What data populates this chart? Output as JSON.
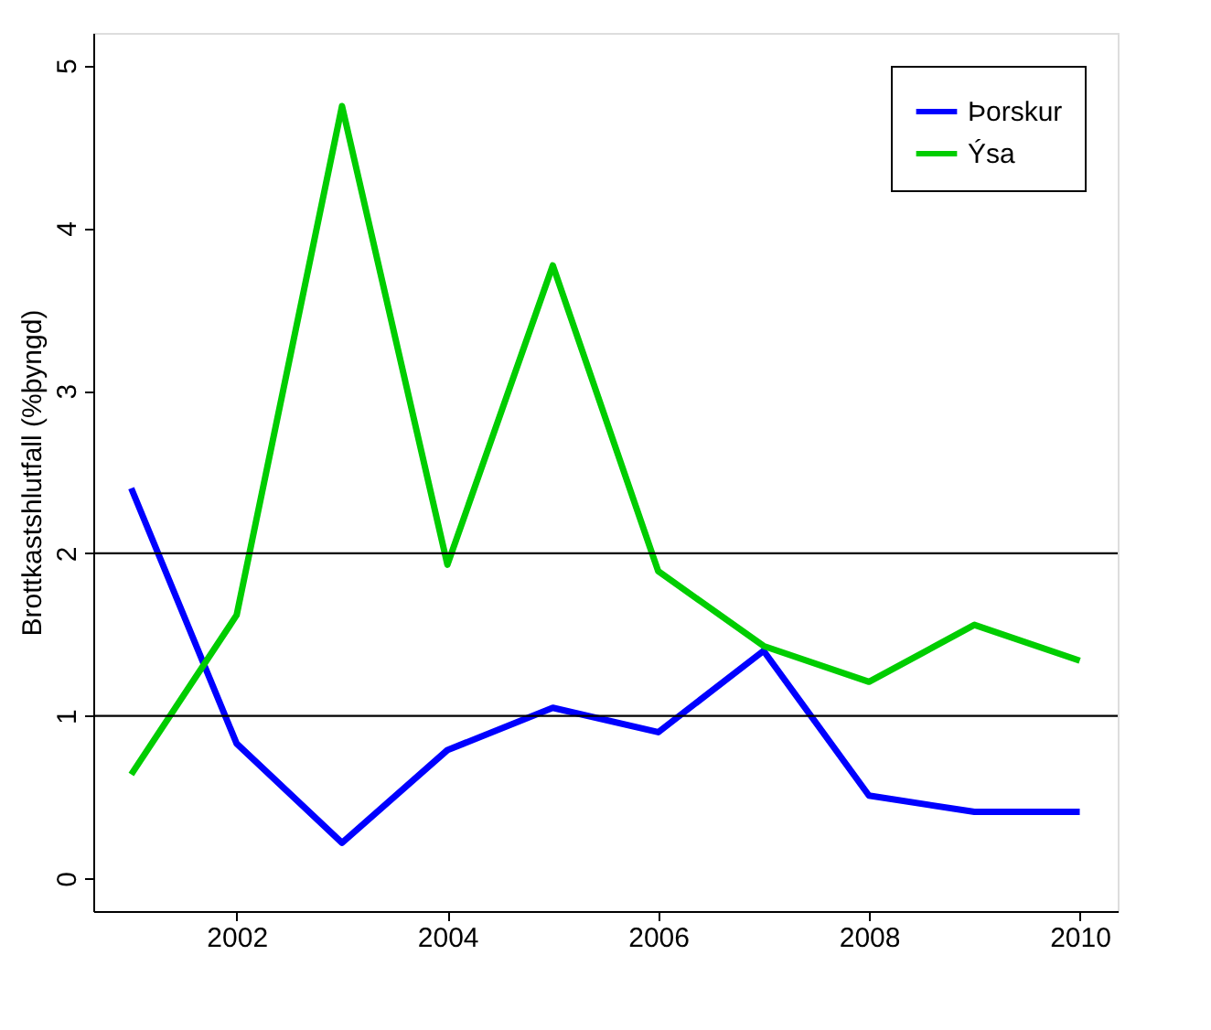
{
  "chart_data": {
    "type": "line",
    "ylabel": "Brottkastshlutfall (%þyngd)",
    "x": [
      2001,
      2002,
      2003,
      2004,
      2005,
      2006,
      2007,
      2008,
      2009,
      2010
    ],
    "series": [
      {
        "name": "Þorskur",
        "color": "#0000ff",
        "values": [
          2.4,
          0.83,
          0.22,
          0.79,
          1.05,
          0.9,
          1.4,
          0.51,
          0.41,
          0.41
        ]
      },
      {
        "name": "Ýsa",
        "color": "#00cd00",
        "values": [
          0.64,
          1.62,
          4.75,
          1.93,
          3.77,
          1.89,
          1.43,
          1.21,
          1.56,
          1.34
        ]
      }
    ],
    "xlim": [
      2000.64,
      2010.36
    ],
    "xticks": [
      2002,
      2004,
      2006,
      2008,
      2010
    ],
    "ylim": [
      -0.2,
      5.2
    ],
    "yticks": [
      0,
      1,
      2,
      3,
      4,
      5
    ],
    "ref_lines": [
      {
        "axis": "y",
        "value": 1,
        "color": "#000000"
      },
      {
        "axis": "y",
        "value": 2,
        "color": "#000000"
      }
    ],
    "grid": false,
    "legend": "top right",
    "marker": "none",
    "line_style": "solid"
  }
}
